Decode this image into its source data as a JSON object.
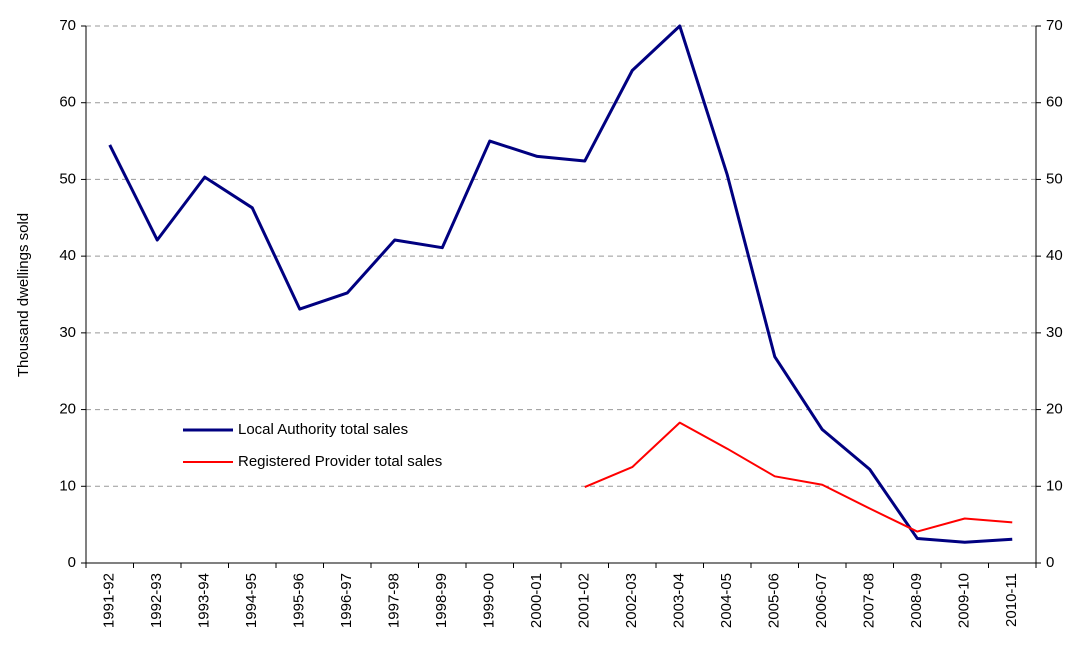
{
  "chart_data": {
    "type": "line",
    "y_label": "Thousand dwellings sold",
    "categories": [
      "1991-92",
      "1992-93",
      "1993-94",
      "1994-95",
      "1995-96",
      "1996-97",
      "1997-98",
      "1998-99",
      "1999-00",
      "2000-01",
      "2001-02",
      "2002-03",
      "2003-04",
      "2004-05",
      "2005-06",
      "2006-07",
      "2007-08",
      "2008-09",
      "2009-10",
      "2010-11"
    ],
    "series": [
      {
        "name": "Local Authority total sales",
        "color": "#000080",
        "values": [
          54.5,
          42.1,
          50.3,
          46.3,
          33.1,
          35.2,
          42.1,
          41.1,
          55.0,
          53.0,
          52.4,
          64.2,
          70.0,
          50.6,
          26.9,
          17.4,
          12.2,
          3.2,
          2.7,
          3.1
        ]
      },
      {
        "name": "Registered Provider total sales",
        "color": "#ff0000",
        "values": [
          null,
          null,
          null,
          null,
          null,
          null,
          null,
          null,
          null,
          null,
          9.9,
          12.5,
          18.3,
          14.9,
          11.3,
          10.2,
          7.1,
          4.1,
          5.8,
          5.3
        ]
      }
    ],
    "ylim": [
      0,
      70
    ],
    "yticks": [
      0,
      10,
      20,
      30,
      40,
      50,
      60,
      70
    ],
    "y2lim": [
      0,
      70
    ],
    "y2ticks": [
      0,
      10,
      20,
      30,
      40,
      50,
      60,
      70
    ],
    "grid": true,
    "legend": "lower left"
  }
}
